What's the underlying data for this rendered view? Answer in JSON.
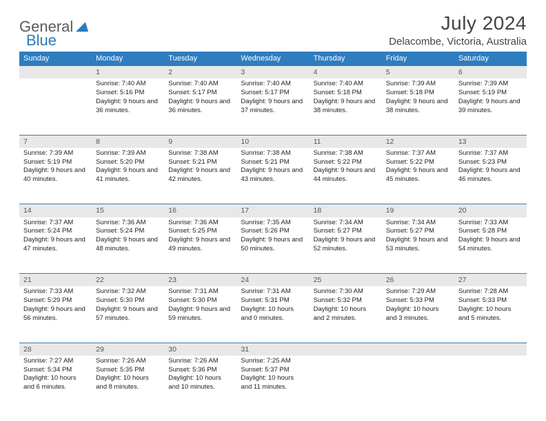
{
  "logo": {
    "part1": "General",
    "part2": "Blue"
  },
  "title": "July 2024",
  "location": "Delacombe, Victoria, Australia",
  "colors": {
    "header_bg": "#2e7dbf",
    "header_text": "#ffffff",
    "daynum_bg": "#e8e8e8",
    "daynum_border": "#2e7dbf",
    "logo_general": "#5a5a5a",
    "logo_blue": "#2b7bbf",
    "body_text": "#222222",
    "title_text": "#444444"
  },
  "weekdays": [
    "Sunday",
    "Monday",
    "Tuesday",
    "Wednesday",
    "Thursday",
    "Friday",
    "Saturday"
  ],
  "weeks": [
    {
      "nums": [
        "",
        "1",
        "2",
        "3",
        "4",
        "5",
        "6"
      ],
      "cells": [
        null,
        {
          "sunrise": "7:40 AM",
          "sunset": "5:16 PM",
          "daylight": "9 hours and 36 minutes."
        },
        {
          "sunrise": "7:40 AM",
          "sunset": "5:17 PM",
          "daylight": "9 hours and 36 minutes."
        },
        {
          "sunrise": "7:40 AM",
          "sunset": "5:17 PM",
          "daylight": "9 hours and 37 minutes."
        },
        {
          "sunrise": "7:40 AM",
          "sunset": "5:18 PM",
          "daylight": "9 hours and 38 minutes."
        },
        {
          "sunrise": "7:39 AM",
          "sunset": "5:18 PM",
          "daylight": "9 hours and 38 minutes."
        },
        {
          "sunrise": "7:39 AM",
          "sunset": "5:19 PM",
          "daylight": "9 hours and 39 minutes."
        }
      ]
    },
    {
      "nums": [
        "7",
        "8",
        "9",
        "10",
        "11",
        "12",
        "13"
      ],
      "cells": [
        {
          "sunrise": "7:39 AM",
          "sunset": "5:19 PM",
          "daylight": "9 hours and 40 minutes."
        },
        {
          "sunrise": "7:39 AM",
          "sunset": "5:20 PM",
          "daylight": "9 hours and 41 minutes."
        },
        {
          "sunrise": "7:38 AM",
          "sunset": "5:21 PM",
          "daylight": "9 hours and 42 minutes."
        },
        {
          "sunrise": "7:38 AM",
          "sunset": "5:21 PM",
          "daylight": "9 hours and 43 minutes."
        },
        {
          "sunrise": "7:38 AM",
          "sunset": "5:22 PM",
          "daylight": "9 hours and 44 minutes."
        },
        {
          "sunrise": "7:37 AM",
          "sunset": "5:22 PM",
          "daylight": "9 hours and 45 minutes."
        },
        {
          "sunrise": "7:37 AM",
          "sunset": "5:23 PM",
          "daylight": "9 hours and 46 minutes."
        }
      ]
    },
    {
      "nums": [
        "14",
        "15",
        "16",
        "17",
        "18",
        "19",
        "20"
      ],
      "cells": [
        {
          "sunrise": "7:37 AM",
          "sunset": "5:24 PM",
          "daylight": "9 hours and 47 minutes."
        },
        {
          "sunrise": "7:36 AM",
          "sunset": "5:24 PM",
          "daylight": "9 hours and 48 minutes."
        },
        {
          "sunrise": "7:36 AM",
          "sunset": "5:25 PM",
          "daylight": "9 hours and 49 minutes."
        },
        {
          "sunrise": "7:35 AM",
          "sunset": "5:26 PM",
          "daylight": "9 hours and 50 minutes."
        },
        {
          "sunrise": "7:34 AM",
          "sunset": "5:27 PM",
          "daylight": "9 hours and 52 minutes."
        },
        {
          "sunrise": "7:34 AM",
          "sunset": "5:27 PM",
          "daylight": "9 hours and 53 minutes."
        },
        {
          "sunrise": "7:33 AM",
          "sunset": "5:28 PM",
          "daylight": "9 hours and 54 minutes."
        }
      ]
    },
    {
      "nums": [
        "21",
        "22",
        "23",
        "24",
        "25",
        "26",
        "27"
      ],
      "cells": [
        {
          "sunrise": "7:33 AM",
          "sunset": "5:29 PM",
          "daylight": "9 hours and 56 minutes."
        },
        {
          "sunrise": "7:32 AM",
          "sunset": "5:30 PM",
          "daylight": "9 hours and 57 minutes."
        },
        {
          "sunrise": "7:31 AM",
          "sunset": "5:30 PM",
          "daylight": "9 hours and 59 minutes."
        },
        {
          "sunrise": "7:31 AM",
          "sunset": "5:31 PM",
          "daylight": "10 hours and 0 minutes."
        },
        {
          "sunrise": "7:30 AM",
          "sunset": "5:32 PM",
          "daylight": "10 hours and 2 minutes."
        },
        {
          "sunrise": "7:29 AM",
          "sunset": "5:33 PM",
          "daylight": "10 hours and 3 minutes."
        },
        {
          "sunrise": "7:28 AM",
          "sunset": "5:33 PM",
          "daylight": "10 hours and 5 minutes."
        }
      ]
    },
    {
      "nums": [
        "28",
        "29",
        "30",
        "31",
        "",
        "",
        ""
      ],
      "cells": [
        {
          "sunrise": "7:27 AM",
          "sunset": "5:34 PM",
          "daylight": "10 hours and 6 minutes."
        },
        {
          "sunrise": "7:26 AM",
          "sunset": "5:35 PM",
          "daylight": "10 hours and 8 minutes."
        },
        {
          "sunrise": "7:26 AM",
          "sunset": "5:36 PM",
          "daylight": "10 hours and 10 minutes."
        },
        {
          "sunrise": "7:25 AM",
          "sunset": "5:37 PM",
          "daylight": "10 hours and 11 minutes."
        },
        null,
        null,
        null
      ]
    }
  ],
  "labels": {
    "sunrise": "Sunrise:",
    "sunset": "Sunset:",
    "daylight": "Daylight:"
  }
}
